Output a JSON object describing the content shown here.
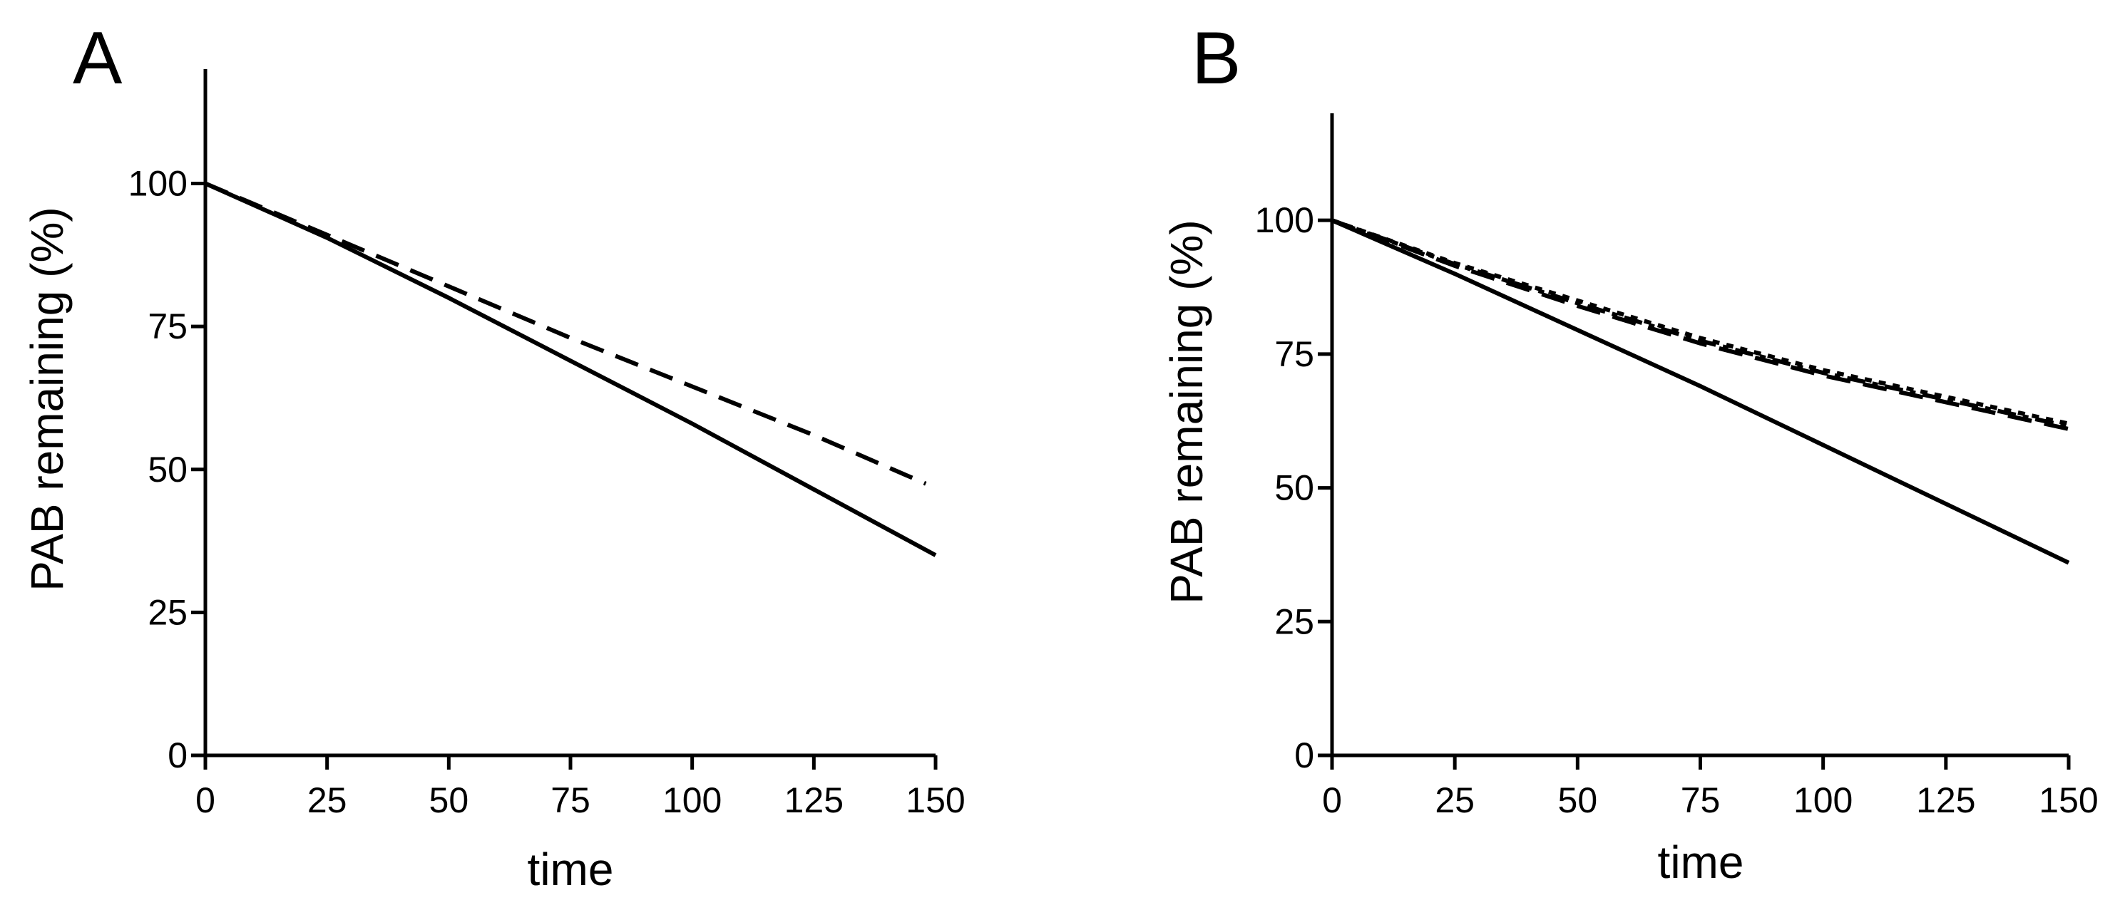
{
  "chart_data": [
    {
      "type": "line",
      "panel_label": "A",
      "xlabel": "time",
      "ylabel": "PAB remaining (%)",
      "xlim": [
        0,
        150
      ],
      "ylim": [
        0,
        120
      ],
      "xticks": [
        0,
        25,
        50,
        75,
        100,
        125,
        150
      ],
      "yticks": [
        0,
        25,
        50,
        75,
        100
      ],
      "xtick_labels": [
        "0",
        "25",
        "50",
        "75",
        "100",
        "125",
        "150"
      ],
      "ytick_labels": [
        "0",
        "25",
        "50",
        "75",
        "100"
      ],
      "grid": false,
      "series": [
        {
          "name": "solid",
          "dash": "solid",
          "x": [
            0,
            25,
            50,
            75,
            100,
            125,
            150
          ],
          "y": [
            100,
            90.5,
            80,
            69,
            58,
            46.5,
            35
          ]
        },
        {
          "name": "dashed",
          "dash": "dashed",
          "x": [
            0,
            25,
            50,
            75,
            100,
            125,
            148
          ],
          "y": [
            100,
            91,
            82,
            73,
            64.5,
            56,
            47.5
          ]
        }
      ]
    },
    {
      "type": "line",
      "panel_label": "B",
      "xlabel": "time",
      "ylabel": "PAB remaining (%)",
      "xlim": [
        0,
        150
      ],
      "ylim": [
        0,
        120
      ],
      "xticks": [
        0,
        25,
        50,
        75,
        100,
        125,
        150
      ],
      "yticks": [
        0,
        25,
        50,
        75,
        100
      ],
      "xtick_labels": [
        "0",
        "25",
        "50",
        "75",
        "100",
        "125",
        "150"
      ],
      "ytick_labels": [
        "0",
        "25",
        "50",
        "75",
        "100"
      ],
      "grid": false,
      "series": [
        {
          "name": "solid",
          "dash": "solid",
          "x": [
            0,
            25,
            50,
            75,
            100,
            125,
            150
          ],
          "y": [
            100,
            90,
            79.5,
            69,
            58,
            47,
            36
          ]
        },
        {
          "name": "dashed-1",
          "dash": "dashed",
          "x": [
            0,
            25,
            50,
            75,
            100,
            125,
            150
          ],
          "y": [
            100,
            91.5,
            84,
            77,
            71,
            66,
            61
          ]
        },
        {
          "name": "dashed-2",
          "dash": "dotted",
          "x": [
            0,
            25,
            50,
            75,
            100,
            125,
            150
          ],
          "y": [
            100,
            92,
            85,
            78,
            72,
            67,
            62
          ]
        },
        {
          "name": "dashed-3",
          "dash": "dashdot",
          "x": [
            0,
            25,
            50,
            75,
            100,
            125,
            150
          ],
          "y": [
            100,
            91.8,
            84.5,
            77.5,
            71.5,
            66.5,
            61.5
          ]
        }
      ]
    }
  ]
}
